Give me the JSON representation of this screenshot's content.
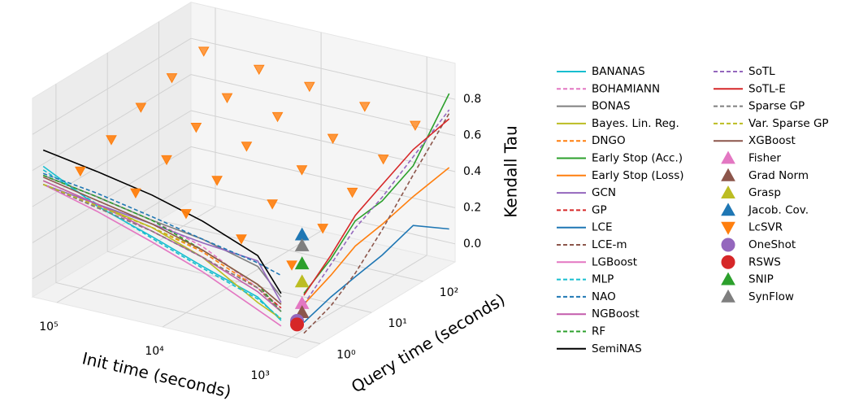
{
  "chart_data": {
    "type": "line3d",
    "x_label": "Init time (seconds)",
    "y_label": "Query time (seconds)",
    "z_label": "Kendall Tau",
    "xscale": "log",
    "yscale": "log",
    "xlim": [
      170000,
      540
    ],
    "ylim": [
      0.35,
      420
    ],
    "zlim": [
      -0.1,
      1.0
    ],
    "xticks": [
      {
        "value": 100000,
        "label": "10⁵"
      },
      {
        "value": 10000,
        "label": "10⁴"
      },
      {
        "value": 1000,
        "label": "10³"
      }
    ],
    "yticks": [
      {
        "value": 1,
        "label": "10⁰"
      },
      {
        "value": 10,
        "label": "10¹"
      },
      {
        "value": 100,
        "label": "10²"
      }
    ],
    "zticks": [
      {
        "value": 0,
        "label": "0.0"
      },
      {
        "value": 0.2,
        "label": "0.2"
      },
      {
        "value": 0.4,
        "label": "0.4"
      },
      {
        "value": 0.6,
        "label": "0.6"
      },
      {
        "value": 0.8,
        "label": "0.8"
      }
    ],
    "grid": true,
    "legend": "right",
    "series": [
      {
        "name": "BANANAS",
        "color": "#17becf",
        "style": "solid",
        "init_time": [
          160000,
          50000,
          15000,
          5000,
          1500,
          900
        ],
        "query_time": 0.5,
        "values": [
          0.6,
          0.45,
          0.35,
          0.25,
          0.15,
          0.05
        ]
      },
      {
        "name": "BOHAMIANN",
        "color": "#e377c2",
        "style": "dashed",
        "init_time": [
          160000,
          50000,
          15000,
          5000,
          1500,
          900
        ],
        "query_time": 0.5,
        "values": [
          0.55,
          0.5,
          0.44,
          0.36,
          0.2,
          0.12
        ]
      },
      {
        "name": "BONAS",
        "color": "#7f7f7f",
        "style": "solid",
        "init_time": [
          160000,
          50000,
          15000,
          5000,
          1500,
          900
        ],
        "query_time": 0.5,
        "values": [
          0.55,
          0.5,
          0.44,
          0.4,
          0.32,
          0.18
        ]
      },
      {
        "name": "Bayes. Lin. Reg.",
        "color": "#bcbd22",
        "style": "solid",
        "init_time": [
          160000,
          50000,
          15000,
          5000,
          1500,
          900
        ],
        "query_time": 0.5,
        "values": [
          0.52,
          0.46,
          0.4,
          0.3,
          0.12,
          0.06
        ]
      },
      {
        "name": "DNGO",
        "color": "#ff7f0e",
        "style": "dashed",
        "init_time": [
          160000,
          50000,
          15000,
          5000,
          1500,
          900
        ],
        "query_time": 0.5,
        "values": [
          0.5,
          0.45,
          0.4,
          0.33,
          0.2,
          0.1
        ]
      },
      {
        "name": "Early Stop (Acc.)",
        "color": "#2ca02c",
        "style": "solid",
        "init_time": 600,
        "query_time": [
          0.6,
          2,
          6,
          20,
          80,
          400
        ],
        "values": [
          0.21,
          0.31,
          0.44,
          0.46,
          0.55,
          0.83
        ]
      },
      {
        "name": "Early Stop (Loss)",
        "color": "#ff7f0e",
        "style": "solid",
        "init_time": 600,
        "query_time": [
          0.6,
          2,
          6,
          20,
          80,
          400
        ],
        "values": [
          0.15,
          0.22,
          0.3,
          0.33,
          0.38,
          0.42
        ]
      },
      {
        "name": "GCN",
        "color": "#9467bd",
        "style": "solid",
        "init_time": [
          160000,
          50000,
          15000,
          5000,
          1500,
          900
        ],
        "query_time": 0.5,
        "values": [
          0.5,
          0.46,
          0.42,
          0.38,
          0.35,
          0.15
        ]
      },
      {
        "name": "GP",
        "color": "#d62728",
        "style": "dashed",
        "init_time": [
          160000,
          50000,
          15000,
          5000,
          1500,
          900
        ],
        "query_time": 0.5,
        "values": [
          0.5,
          0.44,
          0.38,
          0.3,
          0.2,
          0.12
        ]
      },
      {
        "name": "LCE",
        "color": "#1f77b4",
        "style": "solid",
        "init_time": 600,
        "query_time": [
          0.6,
          2,
          6,
          20,
          80,
          400
        ],
        "values": [
          0.05,
          0.1,
          0.13,
          0.16,
          0.22,
          0.08
        ]
      },
      {
        "name": "LCE-m",
        "color": "#8c564b",
        "style": "dashed",
        "init_time": 600,
        "query_time": [
          0.6,
          2,
          6,
          20,
          80,
          400
        ],
        "values": [
          -0.01,
          0.05,
          0.15,
          0.3,
          0.5,
          0.72
        ]
      },
      {
        "name": "LGBoost",
        "color": "#e377c2",
        "style": "solid",
        "init_time": [
          160000,
          50000,
          15000,
          5000,
          1500,
          900
        ],
        "query_time": 0.5,
        "values": [
          0.5,
          0.42,
          0.32,
          0.22,
          0.08,
          0.02
        ]
      },
      {
        "name": "MLP",
        "color": "#17becf",
        "style": "dashed",
        "init_time": [
          160000,
          50000,
          15000,
          5000,
          1500,
          900
        ],
        "query_time": 0.5,
        "values": [
          0.58,
          0.46,
          0.34,
          0.24,
          0.14,
          0.06
        ]
      },
      {
        "name": "NAO",
        "color": "#1f77b4",
        "style": "dashed",
        "init_time": [
          160000,
          50000,
          15000,
          5000,
          1500,
          900
        ],
        "query_time": 0.5,
        "values": [
          0.56,
          0.52,
          0.46,
          0.4,
          0.34,
          0.3
        ]
      },
      {
        "name": "NGBoost",
        "color": "#c45bab",
        "style": "solid",
        "init_time": [
          160000,
          50000,
          15000,
          5000,
          1500,
          900
        ],
        "query_time": 0.5,
        "values": [
          0.52,
          0.46,
          0.38,
          0.3,
          0.18,
          0.1
        ]
      },
      {
        "name": "RF",
        "color": "#2ca02c",
        "style": "dashed",
        "init_time": [
          160000,
          50000,
          15000,
          5000,
          1500,
          900
        ],
        "query_time": 0.5,
        "values": [
          0.55,
          0.5,
          0.44,
          0.34,
          0.22,
          0.1
        ]
      },
      {
        "name": "SemiNAS",
        "color": "#000000",
        "style": "solid",
        "init_time": [
          160000,
          50000,
          15000,
          5000,
          1500,
          900
        ],
        "query_time": 0.5,
        "values": [
          0.69,
          0.64,
          0.58,
          0.5,
          0.38,
          0.2
        ]
      },
      {
        "name": "SoTL",
        "color": "#9467bd",
        "style": "dashed",
        "init_time": 600,
        "query_time": [
          0.6,
          2,
          6,
          20,
          80,
          400
        ],
        "values": [
          0.15,
          0.28,
          0.4,
          0.48,
          0.6,
          0.74
        ]
      },
      {
        "name": "SoTL-E",
        "color": "#d62728",
        "style": "solid",
        "init_time": 600,
        "query_time": [
          0.6,
          2,
          6,
          20,
          80,
          400
        ],
        "values": [
          0.2,
          0.33,
          0.47,
          0.55,
          0.64,
          0.69
        ]
      },
      {
        "name": "Sparse GP",
        "color": "#7f7f7f",
        "style": "dashed",
        "init_time": [
          160000,
          50000,
          15000,
          5000,
          1500,
          900
        ],
        "query_time": 0.5,
        "values": [
          0.5,
          0.44,
          0.38,
          0.3,
          0.2,
          0.1
        ]
      },
      {
        "name": "Var. Sparse GP",
        "color": "#bcbd22",
        "style": "dashed",
        "init_time": [
          160000,
          50000,
          15000,
          5000,
          1500,
          900
        ],
        "query_time": 0.5,
        "values": [
          0.5,
          0.45,
          0.4,
          0.34,
          0.22,
          0.14
        ]
      },
      {
        "name": "XGBoost",
        "color": "#8c564b",
        "style": "solid",
        "init_time": [
          160000,
          50000,
          15000,
          5000,
          1500,
          900
        ],
        "query_time": 0.5,
        "values": [
          0.54,
          0.48,
          0.42,
          0.34,
          0.22,
          0.14
        ]
      },
      {
        "name": "Fisher",
        "color": "#e377c2",
        "marker": "triangle-up",
        "init_time": 800,
        "query_time": 1,
        "values": 0.1
      },
      {
        "name": "Grad Norm",
        "color": "#8c564b",
        "marker": "triangle-up",
        "init_time": 800,
        "query_time": 1,
        "values": 0.05
      },
      {
        "name": "Grasp",
        "color": "#bcbd22",
        "marker": "triangle-up",
        "init_time": 800,
        "query_time": 1,
        "values": 0.22
      },
      {
        "name": "Jacob. Cov.",
        "color": "#1f77b4",
        "marker": "triangle-up",
        "init_time": 800,
        "query_time": 1,
        "values": 0.48
      },
      {
        "name": "LcSVR",
        "color": "#ff7f0e",
        "marker": "triangle-down",
        "init_time": [
          100000,
          30000,
          10000,
          3000,
          1000
        ],
        "query_time": [
          1,
          4,
          15,
          60,
          250
        ],
        "values": [
          [
            0.55,
            0.62,
            0.7,
            0.76,
            0.8
          ],
          [
            0.5,
            0.58,
            0.66,
            0.72,
            0.77
          ],
          [
            0.45,
            0.53,
            0.62,
            0.68,
            0.74
          ],
          [
            0.38,
            0.47,
            0.56,
            0.63,
            0.7
          ],
          [
            0.3,
            0.4,
            0.5,
            0.58,
            0.66
          ]
        ]
      },
      {
        "name": "OneShot",
        "color": "#9467bd",
        "marker": "circle",
        "init_time": 800,
        "query_time": 0.8,
        "values": 0.02
      },
      {
        "name": "RSWS",
        "color": "#d62728",
        "marker": "circle",
        "init_time": 800,
        "query_time": 0.8,
        "values": 0.0
      },
      {
        "name": "SNIP",
        "color": "#2ca02c",
        "marker": "triangle-up",
        "init_time": 800,
        "query_time": 1,
        "values": 0.32
      },
      {
        "name": "SynFlow",
        "color": "#7f7f7f",
        "marker": "triangle-up",
        "init_time": 800,
        "query_time": 1,
        "values": 0.42
      }
    ]
  }
}
